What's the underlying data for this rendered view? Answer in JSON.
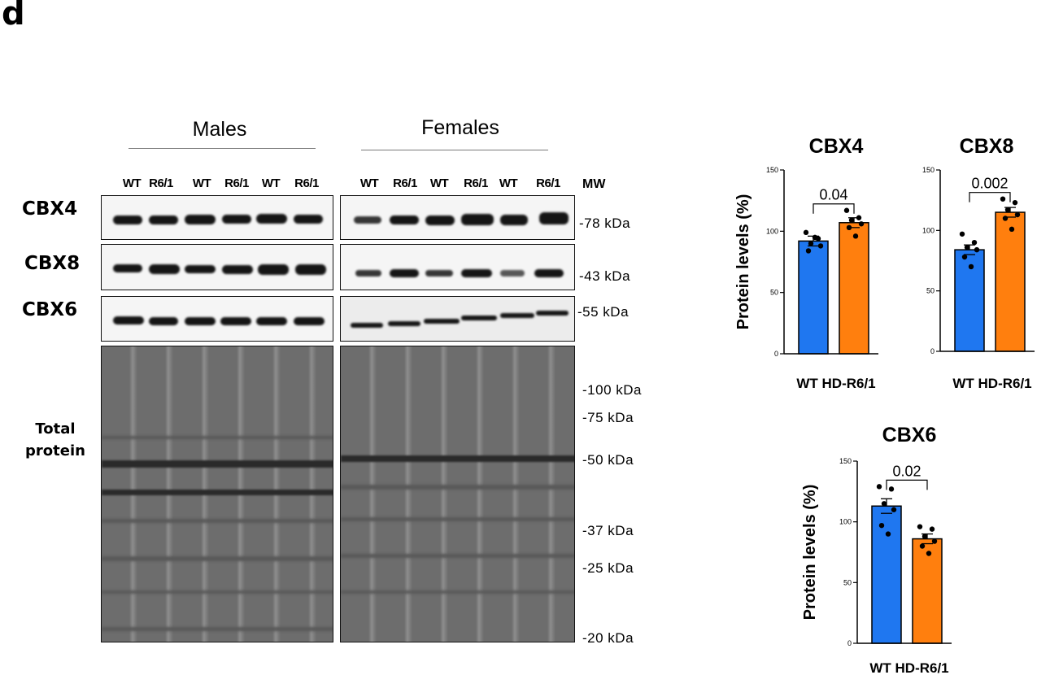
{
  "panel_letter": "d",
  "groups": {
    "males": "Males",
    "females": "Females"
  },
  "lanes": {
    "males": [
      "WT",
      "R6/1",
      "WT",
      "R6/1",
      "WT",
      "R6/1"
    ],
    "females": [
      "WT",
      "R6/1",
      "WT",
      "R6/1",
      "WT",
      "R6/1"
    ]
  },
  "mw_header": "MW",
  "proteins": {
    "cbx4": "CBX4",
    "cbx8": "CBX8",
    "cbx6": "CBX6"
  },
  "total_protein": {
    "line1": "Total",
    "line2": "protein"
  },
  "mw_markers": {
    "cbx4": "-78 kDa",
    "cbx8": "-43 kDa",
    "cbx6": "-55 kDa",
    "m100": "-100 kDa",
    "m75": "-75 kDa",
    "m50": "-50 kDa",
    "m37": "-37 kDa",
    "m25": "-25 kDa",
    "m20": "-20 kDa"
  },
  "colors": {
    "wt": "#1f77f0",
    "hd": "#ff7f0e",
    "outline": "#000000"
  },
  "chart_data": [
    {
      "type": "bar",
      "title": "CBX4",
      "ylabel": "Protein levels (%)",
      "xlabel": "WT HD-R6/1",
      "categories": [
        "WT",
        "HD-R6/1"
      ],
      "values": [
        92,
        107
      ],
      "errors": [
        4,
        4
      ],
      "points": [
        [
          99,
          94,
          90,
          88,
          84,
          95
        ],
        [
          117,
          111,
          109,
          106,
          103,
          96
        ]
      ],
      "ylim": [
        0,
        150
      ],
      "yticks": [
        0,
        50,
        100,
        150
      ],
      "p_value": "0.04"
    },
    {
      "type": "bar",
      "title": "CBX8",
      "ylabel": "",
      "xlabel": "WT HD-R6/1",
      "categories": [
        "WT",
        "HD-R6/1"
      ],
      "values": [
        84,
        115
      ],
      "errors": [
        4,
        4
      ],
      "points": [
        [
          97,
          90,
          86,
          84,
          78,
          70
        ],
        [
          126,
          123,
          117,
          113,
          110,
          101
        ]
      ],
      "ylim": [
        0,
        150
      ],
      "yticks": [
        0,
        50,
        100,
        150
      ],
      "p_value": "0.002"
    },
    {
      "type": "bar",
      "title": "CBX6",
      "ylabel": "Protein levels (%)",
      "xlabel": "WT HD-R6/1",
      "categories": [
        "WT",
        "HD-R6/1"
      ],
      "values": [
        113,
        86
      ],
      "errors": [
        6,
        4
      ],
      "points": [
        [
          129,
          127,
          115,
          110,
          97,
          90
        ],
        [
          96,
          94,
          88,
          84,
          80,
          74
        ]
      ],
      "ylim": [
        0,
        150
      ],
      "yticks": [
        0,
        50,
        100,
        150
      ],
      "p_value": "0.02"
    }
  ]
}
